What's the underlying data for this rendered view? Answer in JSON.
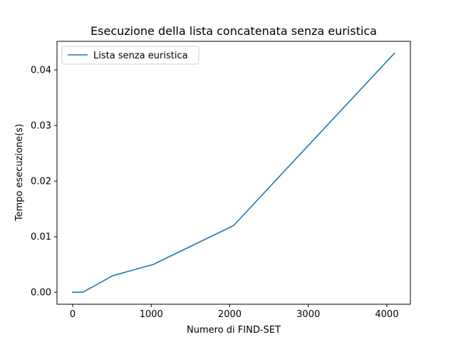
{
  "chart_data": {
    "type": "line",
    "title": "Esecuzione della lista concatenata senza euristica",
    "xlabel": "Numero di FIND-SET",
    "ylabel": "Tempo esecuzione(s)",
    "xlim": [
      -200,
      4300
    ],
    "ylim": [
      -0.00215,
      0.04515
    ],
    "xticks": [
      0,
      1000,
      2000,
      3000,
      4000
    ],
    "xtick_labels": [
      "0",
      "1000",
      "2000",
      "3000",
      "4000"
    ],
    "yticks": [
      0.0,
      0.01,
      0.02,
      0.03,
      0.04
    ],
    "ytick_labels": [
      "0.00",
      "0.01",
      "0.02",
      "0.03",
      "0.04"
    ],
    "grid": false,
    "legend_position": "top-left",
    "series": [
      {
        "name": "Lista senza euristica",
        "color": "#1f77b4",
        "x": [
          0,
          128,
          512,
          1024,
          2048,
          4096
        ],
        "y": [
          0.0,
          0.0,
          0.003,
          0.005,
          0.012,
          0.043
        ]
      }
    ]
  }
}
